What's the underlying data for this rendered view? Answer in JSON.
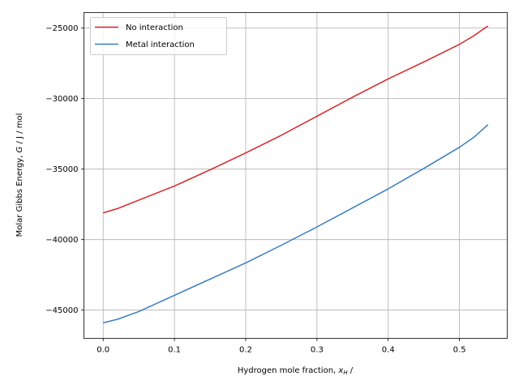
{
  "chart_data": {
    "type": "line",
    "title": "",
    "xlabel": "Hydrogen mole fraction,",
    "xlabel_math": "x",
    "xlabel_sub": "H",
    "xlabel_suffix": " /",
    "ylabel": "Molar Gibbs Energy,",
    "ylabel_math": "G",
    "ylabel_suffix": " / J / mol",
    "xlim": [
      -0.027,
      0.567
    ],
    "ylim": [
      -47000,
      -23900
    ],
    "xticks": [
      0.0,
      0.1,
      0.2,
      0.3,
      0.4,
      0.5
    ],
    "xtick_labels": [
      "0.0",
      "0.1",
      "0.2",
      "0.3",
      "0.4",
      "0.5"
    ],
    "yticks": [
      -45000,
      -40000,
      -35000,
      -30000,
      -25000
    ],
    "ytick_labels": [
      "−45000",
      "−40000",
      "−35000",
      "−30000",
      "−25000"
    ],
    "grid": true,
    "legend_position": "upper-left",
    "series": [
      {
        "name": "No interaction",
        "color": "#d62728",
        "x": [
          0.0,
          0.02,
          0.05,
          0.1,
          0.15,
          0.2,
          0.25,
          0.3,
          0.35,
          0.4,
          0.45,
          0.5,
          0.52,
          0.54
        ],
        "y": [
          -38100,
          -37800,
          -37200,
          -36200,
          -35050,
          -33850,
          -32600,
          -31250,
          -29900,
          -28600,
          -27400,
          -26150,
          -25550,
          -24850
        ]
      },
      {
        "name": "Metal interaction",
        "color": "#3a7dbd",
        "x": [
          0.0,
          0.02,
          0.05,
          0.1,
          0.15,
          0.2,
          0.25,
          0.3,
          0.35,
          0.4,
          0.45,
          0.5,
          0.52,
          0.54
        ],
        "y": [
          -45900,
          -45650,
          -45100,
          -43950,
          -42800,
          -41650,
          -40400,
          -39100,
          -37750,
          -36400,
          -34950,
          -33450,
          -32750,
          -31850
        ]
      }
    ]
  }
}
